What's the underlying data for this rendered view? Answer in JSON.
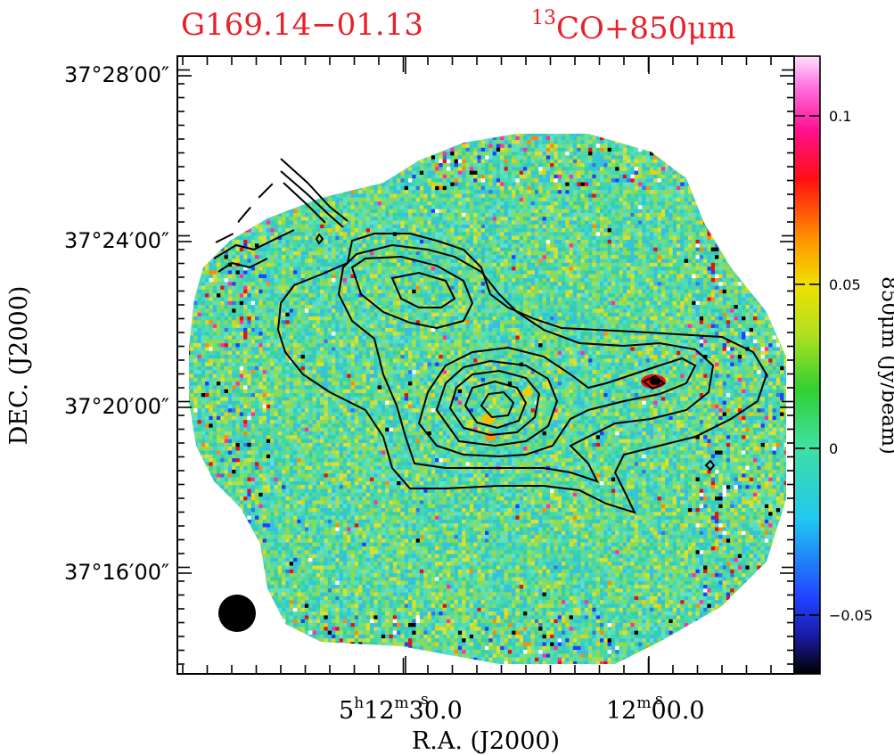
{
  "chart_data": {
    "type": "heatmap",
    "title_left": "G169.14−01.13",
    "title_right_sup": "13",
    "title_right": "CO+850μm",
    "xlabel": "R.A. (J2000)",
    "ylabel": "DEC. (J2000)",
    "x_ticks": [
      {
        "h": "5",
        "m": "12",
        "s": "30.0"
      },
      {
        "h": "",
        "m": "12",
        "s": "00.0"
      }
    ],
    "y_ticks": [
      "37°28′00″",
      "37°24′00″",
      "37°20′00″",
      "37°16′00″"
    ],
    "colorbar": {
      "label": "850μm (Jy/beam)",
      "ticks": [
        "0.1",
        "0.05",
        "0",
        "−0.05"
      ],
      "range": [
        -0.07,
        0.12
      ]
    },
    "colors": {
      "title": "#e8202a",
      "contour": "#000000",
      "background_map": "#3dd6a0"
    },
    "beam": "filled-circle"
  }
}
